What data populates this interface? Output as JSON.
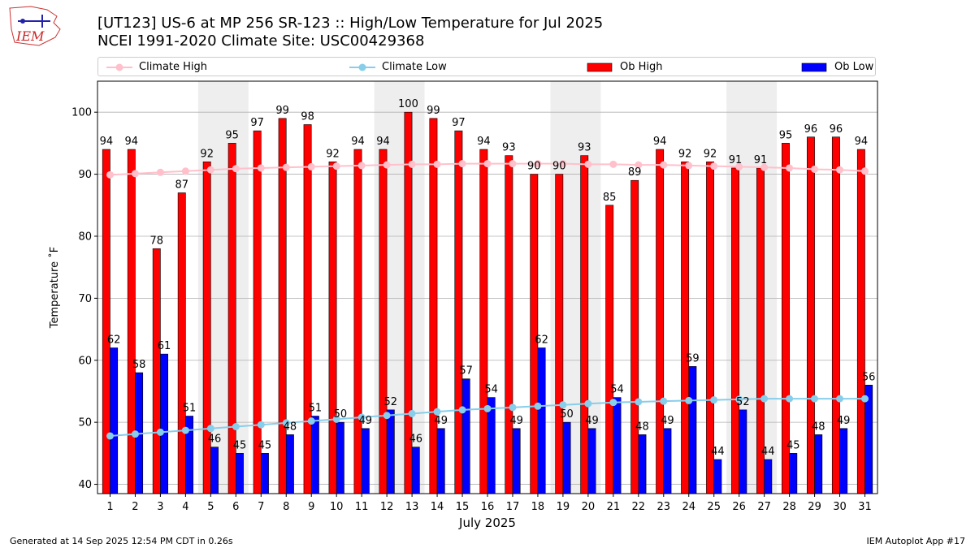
{
  "header": {
    "title_line1": "[UT123] US-6 at MP 256 SR-123  :: High/Low Temperature for Jul 2025",
    "title_line2": "NCEI 1991-2020 Climate Site: USC00429368",
    "logo_text": "IEM"
  },
  "footer": {
    "generated": "Generated at 14 Sep 2025 12:54 PM CDT in 0.26s",
    "app": "IEM Autoplot App #17"
  },
  "legend": {
    "climate_high": "Climate High",
    "climate_low": "Climate Low",
    "ob_high": "Ob High",
    "ob_low": "Ob Low"
  },
  "colors": {
    "ob_high": "#ff0000",
    "ob_low": "#0000ff",
    "climate_high": "#ffc0cb",
    "climate_low": "#87ceeb",
    "weekend_shade": "#eeeeee",
    "grid": "#b0b0b0"
  },
  "chart_data": {
    "type": "bar",
    "xlabel": "July 2025",
    "ylabel": "Temperature ˚F",
    "ylim": [
      38.5,
      105
    ],
    "yticks": [
      40,
      50,
      60,
      70,
      80,
      90,
      100
    ],
    "grid": "horizontal",
    "legend_position": "top",
    "categories": [
      "1",
      "2",
      "3",
      "4",
      "5",
      "6",
      "7",
      "8",
      "9",
      "10",
      "11",
      "12",
      "13",
      "14",
      "15",
      "16",
      "17",
      "18",
      "19",
      "20",
      "21",
      "22",
      "23",
      "24",
      "25",
      "26",
      "27",
      "28",
      "29",
      "30",
      "31"
    ],
    "shaded_ranges": [
      [
        5,
        6
      ],
      [
        12,
        13
      ],
      [
        19,
        20
      ],
      [
        26,
        27
      ]
    ],
    "series": [
      {
        "name": "Ob High",
        "kind": "bar",
        "values": [
          94,
          94,
          78,
          87,
          92,
          95,
          97,
          99,
          98,
          92,
          94,
          94,
          100,
          99,
          97,
          94,
          93,
          90,
          90,
          93,
          85,
          89,
          94,
          92,
          92,
          91,
          91,
          95,
          96,
          96,
          94
        ]
      },
      {
        "name": "Ob Low",
        "kind": "bar",
        "values": [
          62,
          58,
          61,
          51,
          46,
          45,
          45,
          48,
          51,
          50,
          49,
          52,
          46,
          49,
          57,
          54,
          49,
          62,
          50,
          49,
          54,
          48,
          49,
          59,
          44,
          52,
          44,
          45,
          48,
          49,
          56
        ]
      },
      {
        "name": "Climate High",
        "kind": "line",
        "values": [
          89.9,
          90.1,
          90.3,
          90.5,
          90.7,
          90.9,
          91.0,
          91.1,
          91.2,
          91.3,
          91.4,
          91.5,
          91.6,
          91.6,
          91.7,
          91.7,
          91.7,
          91.7,
          91.7,
          91.6,
          91.6,
          91.5,
          91.5,
          91.4,
          91.3,
          91.2,
          91.1,
          91.0,
          90.8,
          90.7,
          90.5
        ]
      },
      {
        "name": "Climate Low",
        "kind": "line",
        "values": [
          47.8,
          48.1,
          48.4,
          48.7,
          49.0,
          49.3,
          49.6,
          49.9,
          50.2,
          50.5,
          50.8,
          51.1,
          51.4,
          51.7,
          52.0,
          52.2,
          52.4,
          52.6,
          52.8,
          53.0,
          53.2,
          53.3,
          53.4,
          53.5,
          53.6,
          53.7,
          53.8,
          53.8,
          53.8,
          53.8,
          53.8
        ]
      }
    ]
  }
}
